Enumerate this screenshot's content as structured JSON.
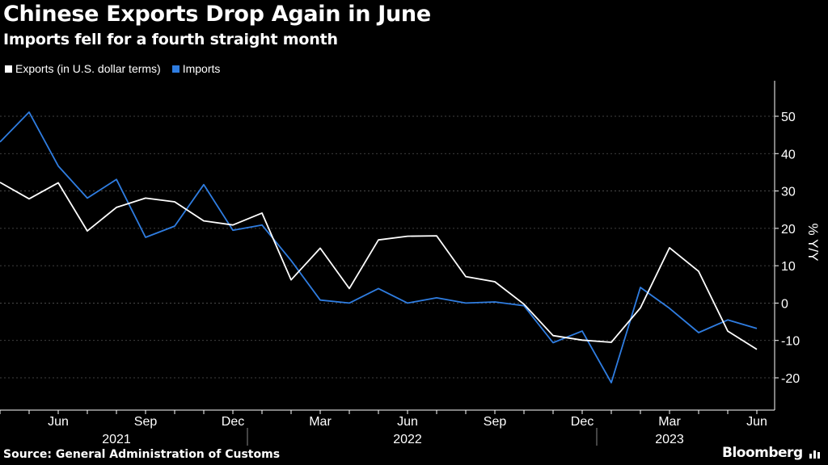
{
  "header": {
    "title": "Chinese Exports Drop Again in June",
    "subtitle": "Imports fell for a fourth straight month"
  },
  "footer": {
    "source": "Source: General Administration of Customs",
    "brand": "Bloomberg",
    "brand_icon": "bar-chart-icon"
  },
  "colors": {
    "background": "#000000",
    "exports": "#ffffff",
    "imports": "#2f7de1",
    "grid": "#555555",
    "axis": "#ffffff"
  },
  "chart_data": {
    "type": "line",
    "title": "Chinese Exports Drop Again in June",
    "subtitle": "Imports fell for a fourth straight month",
    "ylabel": "% Y/Y",
    "xlabel": "",
    "ylim": [
      -28,
      58
    ],
    "yticks": [
      -20,
      -10,
      0,
      10,
      20,
      30,
      40,
      50
    ],
    "ytick_labels": [
      "-20",
      "-10",
      "0",
      "10",
      "20",
      "30",
      "40",
      "50"
    ],
    "grid": true,
    "legend_position": "top-left",
    "x": [
      "2021-04",
      "2021-05",
      "2021-06",
      "2021-07",
      "2021-08",
      "2021-09",
      "2021-10",
      "2021-11",
      "2021-12",
      "2022-01",
      "2022-02",
      "2022-03",
      "2022-04",
      "2022-05",
      "2022-06",
      "2022-07",
      "2022-08",
      "2022-09",
      "2022-10",
      "2022-11",
      "2022-12",
      "2023-01",
      "2023-02",
      "2023-03",
      "2023-04",
      "2023-05",
      "2023-06"
    ],
    "xtick_positions": [
      2,
      5,
      8,
      11,
      14,
      17,
      20,
      23,
      26
    ],
    "xtick_labels": [
      "Jun",
      "Sep",
      "Dec",
      "Mar",
      "Jun",
      "Sep",
      "Dec",
      "Mar",
      "Jun"
    ],
    "year_labels": [
      {
        "label": "2021",
        "at": 4
      },
      {
        "label": "2022",
        "at": 14
      },
      {
        "label": "2023",
        "at": 23
      }
    ],
    "year_dividers": [
      8.5,
      20.5
    ],
    "series": [
      {
        "name": "Exports (in U.S. dollar terms)",
        "values": [
          32.3,
          27.9,
          32.2,
          19.3,
          25.6,
          28.1,
          27.1,
          22.0,
          20.9,
          24.1,
          6.2,
          14.7,
          3.9,
          16.9,
          17.9,
          18.0,
          7.1,
          5.7,
          -0.3,
          -8.7,
          -9.9,
          -10.5,
          -1.3,
          14.8,
          8.5,
          -7.5,
          -12.4
        ]
      },
      {
        "name": "Imports",
        "values": [
          43.1,
          51.1,
          36.7,
          28.1,
          33.1,
          17.6,
          20.6,
          31.7,
          19.5,
          20.9,
          11.4,
          0.8,
          0.0,
          3.9,
          0.0,
          1.4,
          0.0,
          0.3,
          -0.7,
          -10.6,
          -7.5,
          -21.3,
          4.2,
          -1.4,
          -7.9,
          -4.5,
          -6.8
        ]
      }
    ]
  }
}
